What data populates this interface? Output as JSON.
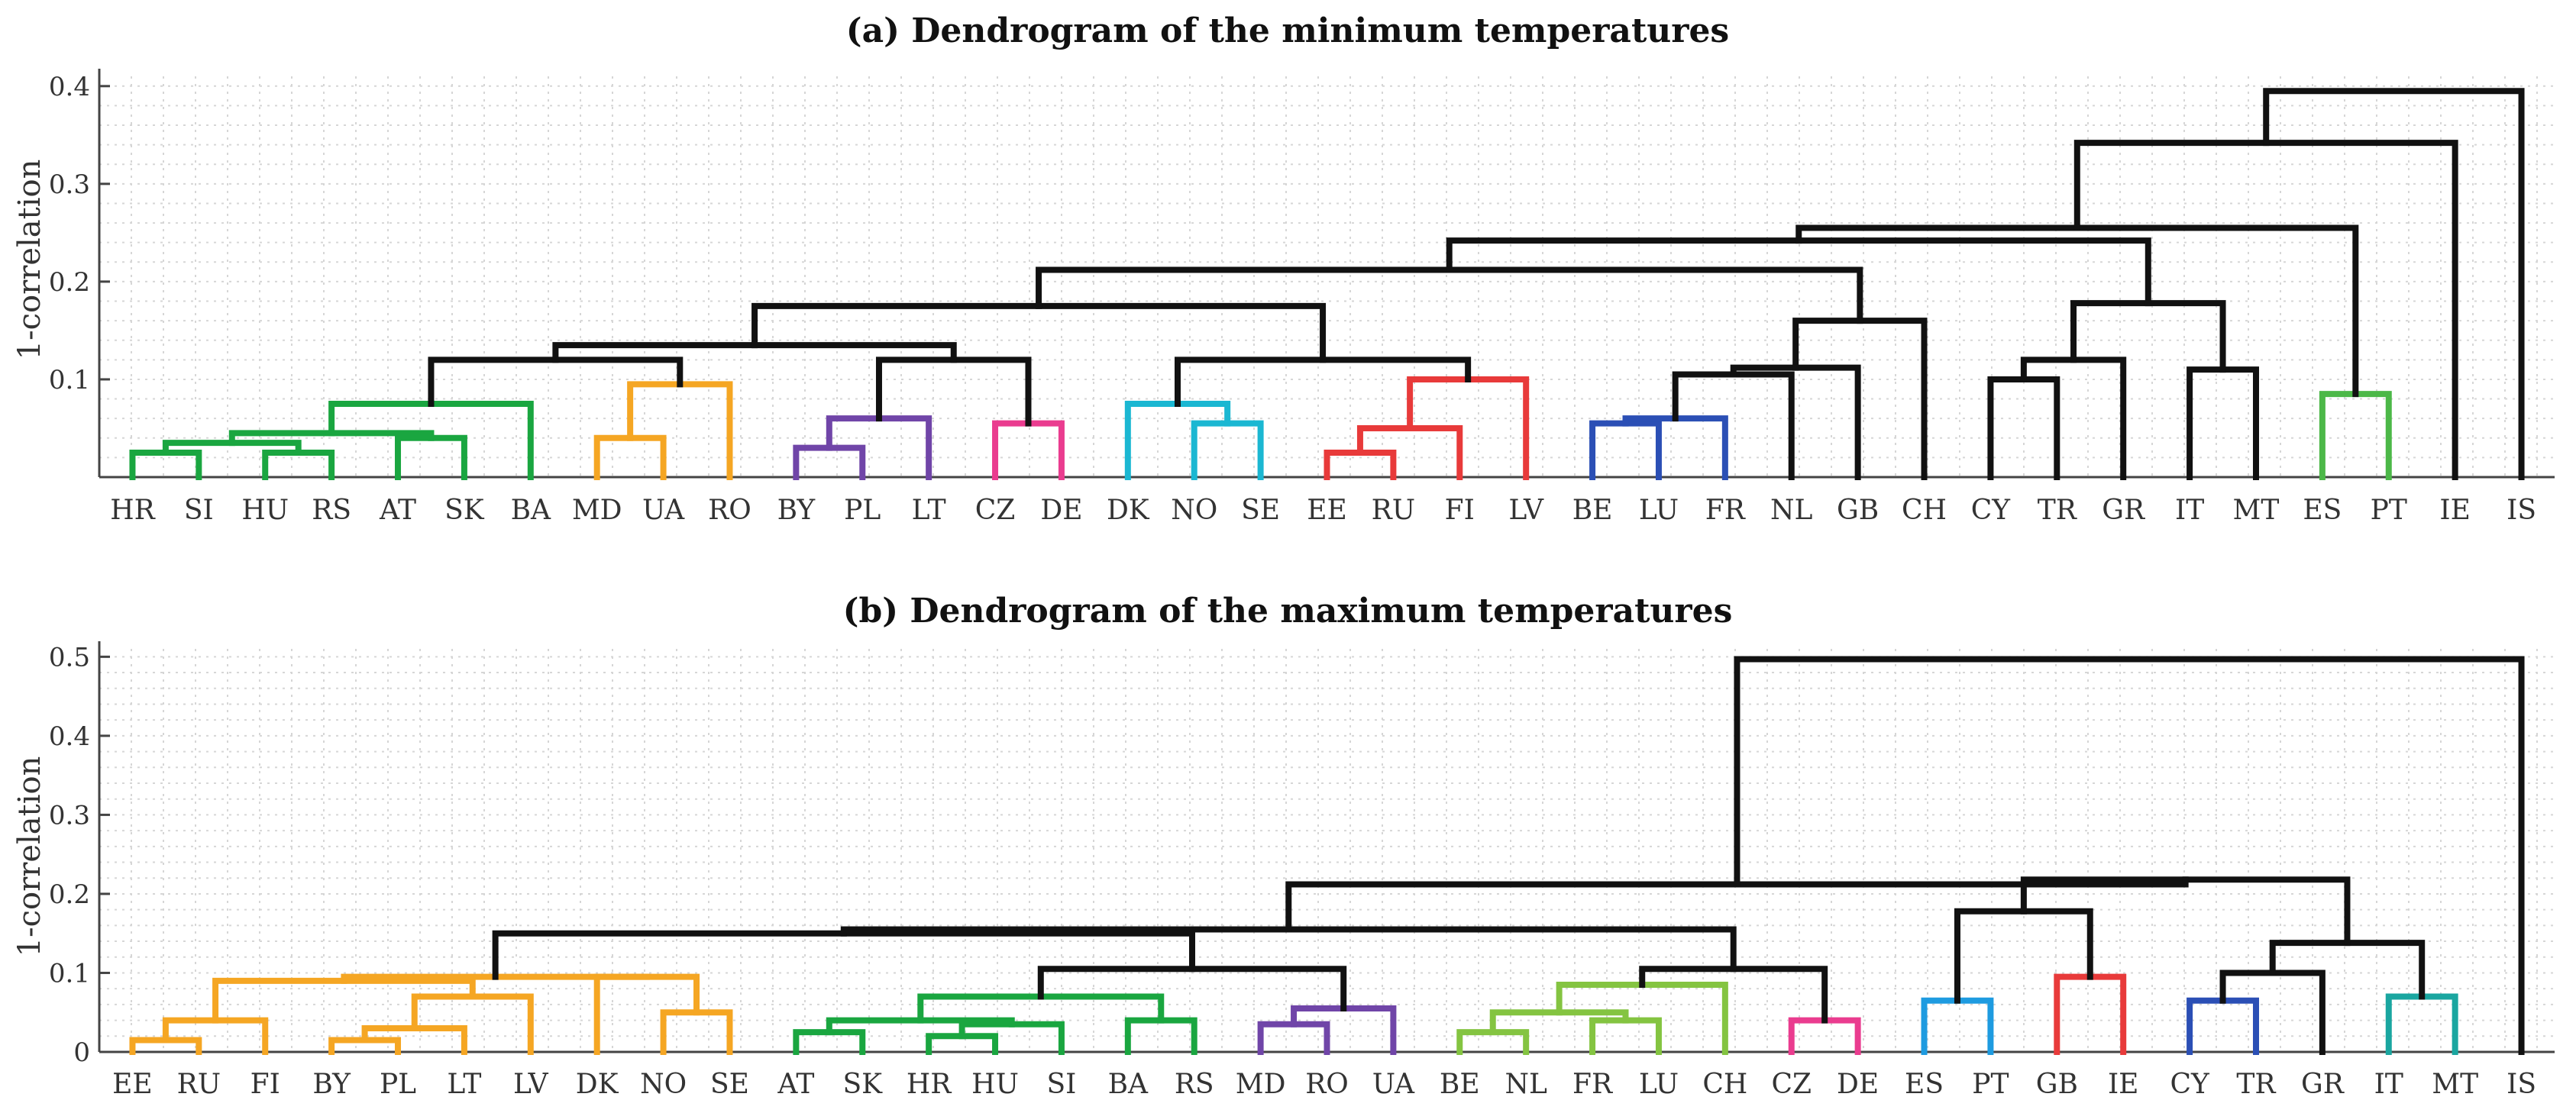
{
  "chart_data": [
    {
      "type": "dendrogram",
      "title": "(a) Dendrogram of the minimum temperatures",
      "ylabel": "1-correlation",
      "ylim": [
        0.0,
        0.41
      ],
      "yticks": [
        "0.1",
        "0.2",
        "0.3",
        "0.4"
      ],
      "ytick_values": [
        0.1,
        0.2,
        0.3,
        0.4
      ],
      "grid": true,
      "leaves": [
        "HR",
        "SI",
        "HU",
        "RS",
        "AT",
        "SK",
        "BA",
        "MD",
        "UA",
        "RO",
        "BY",
        "PL",
        "LT",
        "CZ",
        "DE",
        "DK",
        "NO",
        "SE",
        "EE",
        "RU",
        "FI",
        "LV",
        "BE",
        "LU",
        "FR",
        "NL",
        "GB",
        "CH",
        "CY",
        "TR",
        "GR",
        "IT",
        "MT",
        "ES",
        "PT",
        "IE",
        "IS"
      ],
      "merges": [
        {
          "a": "HR",
          "b": "SI",
          "h": 0.025,
          "c": "#1aa640"
        },
        {
          "a": "HU",
          "b": "RS",
          "h": 0.025,
          "c": "#1aa640"
        },
        {
          "a": "AT",
          "b": "SK",
          "h": 0.04,
          "c": "#1aa640"
        },
        {
          "a": 0,
          "b": 1,
          "h": 0.035,
          "c": "#1aa640"
        },
        {
          "a": 3,
          "b": 2,
          "h": 0.045,
          "c": "#1aa640"
        },
        {
          "a": 4,
          "b": "BA",
          "h": 0.075,
          "c": "#1aa640"
        },
        {
          "a": "MD",
          "b": "UA",
          "h": 0.04,
          "c": "#f5a623"
        },
        {
          "a": 6,
          "b": "RO",
          "h": 0.095,
          "c": "#f5a623"
        },
        {
          "a": "BY",
          "b": "PL",
          "h": 0.03,
          "c": "#7045a8"
        },
        {
          "a": 8,
          "b": "LT",
          "h": 0.06,
          "c": "#7045a8"
        },
        {
          "a": "CZ",
          "b": "DE",
          "h": 0.055,
          "c": "#ea3c8f"
        },
        {
          "a": "NO",
          "b": "SE",
          "h": 0.055,
          "c": "#1bb7d2"
        },
        {
          "a": "DK",
          "b": 11,
          "h": 0.075,
          "c": "#1bb7d2"
        },
        {
          "a": "EE",
          "b": "RU",
          "h": 0.025,
          "c": "#e83a3a"
        },
        {
          "a": 13,
          "b": "FI",
          "h": 0.05,
          "c": "#e83a3a"
        },
        {
          "a": 14,
          "b": "LV",
          "h": 0.1,
          "c": "#e83a3a"
        },
        {
          "a": "BE",
          "b": "LU",
          "h": 0.055,
          "c": "#2b4fb5"
        },
        {
          "a": 16,
          "b": "FR",
          "h": 0.06,
          "c": "#2b4fb5"
        },
        {
          "a": "ES",
          "b": "PT",
          "h": 0.085,
          "c": "#4cb848"
        },
        {
          "a": 5,
          "b": 7,
          "h": 0.12,
          "c": "#111111"
        },
        {
          "a": 9,
          "b": 10,
          "h": 0.12,
          "c": "#111111"
        },
        {
          "a": 12,
          "b": 15,
          "h": 0.12,
          "c": "#111111"
        },
        {
          "a": 19,
          "b": 20,
          "h": 0.135,
          "c": "#111111"
        },
        {
          "a": 22,
          "b": 21,
          "h": 0.175,
          "c": "#111111"
        },
        {
          "a": 17,
          "b": "NL",
          "h": 0.105,
          "c": "#111111"
        },
        {
          "a": 24,
          "b": "GB",
          "h": 0.112,
          "c": "#111111"
        },
        {
          "a": 25,
          "b": "CH",
          "h": 0.16,
          "c": "#111111"
        },
        {
          "a": 23,
          "b": 26,
          "h": 0.212,
          "c": "#111111"
        },
        {
          "a": "CY",
          "b": "TR",
          "h": 0.1,
          "c": "#111111"
        },
        {
          "a": 28,
          "b": "GR",
          "h": 0.12,
          "c": "#111111"
        },
        {
          "a": "IT",
          "b": "MT",
          "h": 0.11,
          "c": "#111111"
        },
        {
          "a": 29,
          "b": 30,
          "h": 0.178,
          "c": "#111111"
        },
        {
          "a": 27,
          "b": 31,
          "h": 0.242,
          "c": "#111111"
        },
        {
          "a": 32,
          "b": 18,
          "h": 0.255,
          "c": "#111111"
        },
        {
          "a": 33,
          "b": "IE",
          "h": 0.342,
          "c": "#111111"
        },
        {
          "a": 34,
          "b": "IS",
          "h": 0.395,
          "c": "#111111"
        }
      ]
    },
    {
      "type": "dendrogram",
      "title": "(b) Dendrogram of the maximum temperatures",
      "ylabel": "1-correlation",
      "ylim": [
        0.0,
        0.51
      ],
      "yticks": [
        "0",
        "0.1",
        "0.2",
        "0.3",
        "0.4",
        "0.5"
      ],
      "ytick_values": [
        0.0,
        0.1,
        0.2,
        0.3,
        0.4,
        0.5
      ],
      "grid": true,
      "leaves": [
        "EE",
        "RU",
        "FI",
        "BY",
        "PL",
        "LT",
        "LV",
        "DK",
        "NO",
        "SE",
        "AT",
        "SK",
        "HR",
        "HU",
        "SI",
        "BA",
        "RS",
        "MD",
        "RO",
        "UA",
        "BE",
        "NL",
        "FR",
        "LU",
        "CH",
        "CZ",
        "DE",
        "ES",
        "PT",
        "GB",
        "IE",
        "CY",
        "TR",
        "GR",
        "IT",
        "MT",
        "IS"
      ],
      "merges": [
        {
          "a": "EE",
          "b": "RU",
          "h": 0.015,
          "c": "#f5a623"
        },
        {
          "a": 0,
          "b": "FI",
          "h": 0.04,
          "c": "#f5a623"
        },
        {
          "a": "BY",
          "b": "PL",
          "h": 0.015,
          "c": "#f5a623"
        },
        {
          "a": 2,
          "b": "LT",
          "h": 0.03,
          "c": "#f5a623"
        },
        {
          "a": 3,
          "b": "LV",
          "h": 0.07,
          "c": "#f5a623"
        },
        {
          "a": "NO",
          "b": "SE",
          "h": 0.05,
          "c": "#f5a623"
        },
        {
          "a": "DK",
          "b": 5,
          "h": 0.095,
          "c": "#f5a623"
        },
        {
          "a": 1,
          "b": 4,
          "h": 0.09,
          "c": "#f5a623"
        },
        {
          "a": 7,
          "b": 6,
          "h": 0.095,
          "c": "#f5a623"
        },
        {
          "a": "AT",
          "b": "SK",
          "h": 0.025,
          "c": "#1aa640"
        },
        {
          "a": "HR",
          "b": "HU",
          "h": 0.02,
          "c": "#1aa640"
        },
        {
          "a": 10,
          "b": "SI",
          "h": 0.035,
          "c": "#1aa640"
        },
        {
          "a": 9,
          "b": 11,
          "h": 0.04,
          "c": "#1aa640"
        },
        {
          "a": "BA",
          "b": "RS",
          "h": 0.04,
          "c": "#1aa640"
        },
        {
          "a": 12,
          "b": 13,
          "h": 0.07,
          "c": "#1aa640"
        },
        {
          "a": "MD",
          "b": "RO",
          "h": 0.035,
          "c": "#7045a8"
        },
        {
          "a": 15,
          "b": "UA",
          "h": 0.055,
          "c": "#7045a8"
        },
        {
          "a": "BE",
          "b": "NL",
          "h": 0.025,
          "c": "#84c441"
        },
        {
          "a": "FR",
          "b": "LU",
          "h": 0.04,
          "c": "#84c441"
        },
        {
          "a": 17,
          "b": 18,
          "h": 0.05,
          "c": "#84c441"
        },
        {
          "a": 19,
          "b": "CH",
          "h": 0.085,
          "c": "#84c441"
        },
        {
          "a": "CZ",
          "b": "DE",
          "h": 0.04,
          "c": "#ea3c8f"
        },
        {
          "a": "ES",
          "b": "PT",
          "h": 0.065,
          "c": "#1e9be0"
        },
        {
          "a": "GB",
          "b": "IE",
          "h": 0.095,
          "c": "#e83a3a"
        },
        {
          "a": "CY",
          "b": "TR",
          "h": 0.065,
          "c": "#2b4fb5"
        },
        {
          "a": "IT",
          "b": "MT",
          "h": 0.07,
          "c": "#1aa6a0"
        },
        {
          "a": 14,
          "b": 16,
          "h": 0.105,
          "c": "#111111"
        },
        {
          "a": 20,
          "b": 21,
          "h": 0.105,
          "c": "#111111"
        },
        {
          "a": 8,
          "b": 26,
          "h": 0.15,
          "c": "#111111"
        },
        {
          "a": 28,
          "b": 27,
          "h": 0.155,
          "c": "#111111"
        },
        {
          "a": 22,
          "b": 23,
          "h": 0.178,
          "c": "#111111"
        },
        {
          "a": 24,
          "b": "GR",
          "h": 0.1,
          "c": "#111111"
        },
        {
          "a": 31,
          "b": 25,
          "h": 0.138,
          "c": "#111111"
        },
        {
          "a": 30,
          "b": 32,
          "h": 0.218,
          "c": "#111111"
        },
        {
          "a": 29,
          "b": 33,
          "h": 0.212,
          "c": "#111111"
        },
        {
          "a": 34,
          "b": "IS",
          "h": 0.497,
          "c": "#111111"
        }
      ]
    }
  ]
}
